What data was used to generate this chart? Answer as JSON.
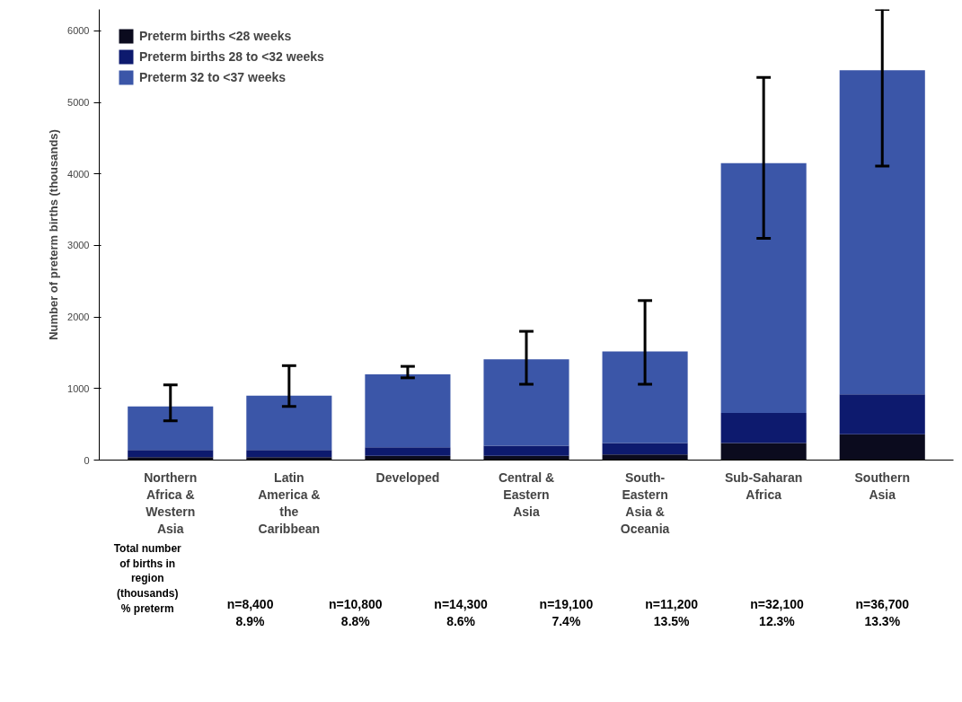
{
  "chart_data": {
    "type": "bar",
    "stacked": true,
    "ylabel": "Number of preterm births (thousands)",
    "categories": [
      "Northern Africa & Western Asia",
      "Latin America & the Caribbean",
      "Developed",
      "Central & Eastern Asia",
      "South-Eastern Asia & Oceania",
      "Sub-Saharan Africa",
      "Southern Asia"
    ],
    "series": [
      {
        "name": "Preterm births <28 weeks",
        "color": "#0b0b1e",
        "values": [
          40,
          40,
          60,
          60,
          80,
          240,
          360
        ]
      },
      {
        "name": "Preterm births 28 to <32 weeks",
        "color": "#0d1a6e",
        "values": [
          100,
          100,
          120,
          140,
          160,
          420,
          560
        ]
      },
      {
        "name": "Preterm 32 to <37 weeks",
        "color": "#3b56a8",
        "values": [
          610,
          760,
          1020,
          1210,
          1280,
          3490,
          4530
        ],
        "errors": [
          [
            550,
            1050
          ],
          [
            750,
            1320
          ],
          [
            1150,
            1310
          ],
          [
            1060,
            1800
          ],
          [
            1060,
            2230
          ],
          [
            3100,
            5350
          ],
          [
            4110,
            6300
          ]
        ]
      }
    ],
    "ylim": [
      0,
      6300
    ],
    "yticks": [
      0,
      1000,
      2000,
      3000,
      4000,
      5000,
      6000
    ],
    "grid": false,
    "legend": "top left",
    "annotations": [
      "Total number of births in region (thousands)\n% preterm",
      "n=8,400\n8.9%",
      "n=10,800\n8.8%",
      "n=14,300\n8.6%",
      "n=19,100\n7.4%",
      "n=11,200\n13.5%",
      "n=32,100\n12.3%",
      "n=36,700\n13.3%"
    ]
  }
}
